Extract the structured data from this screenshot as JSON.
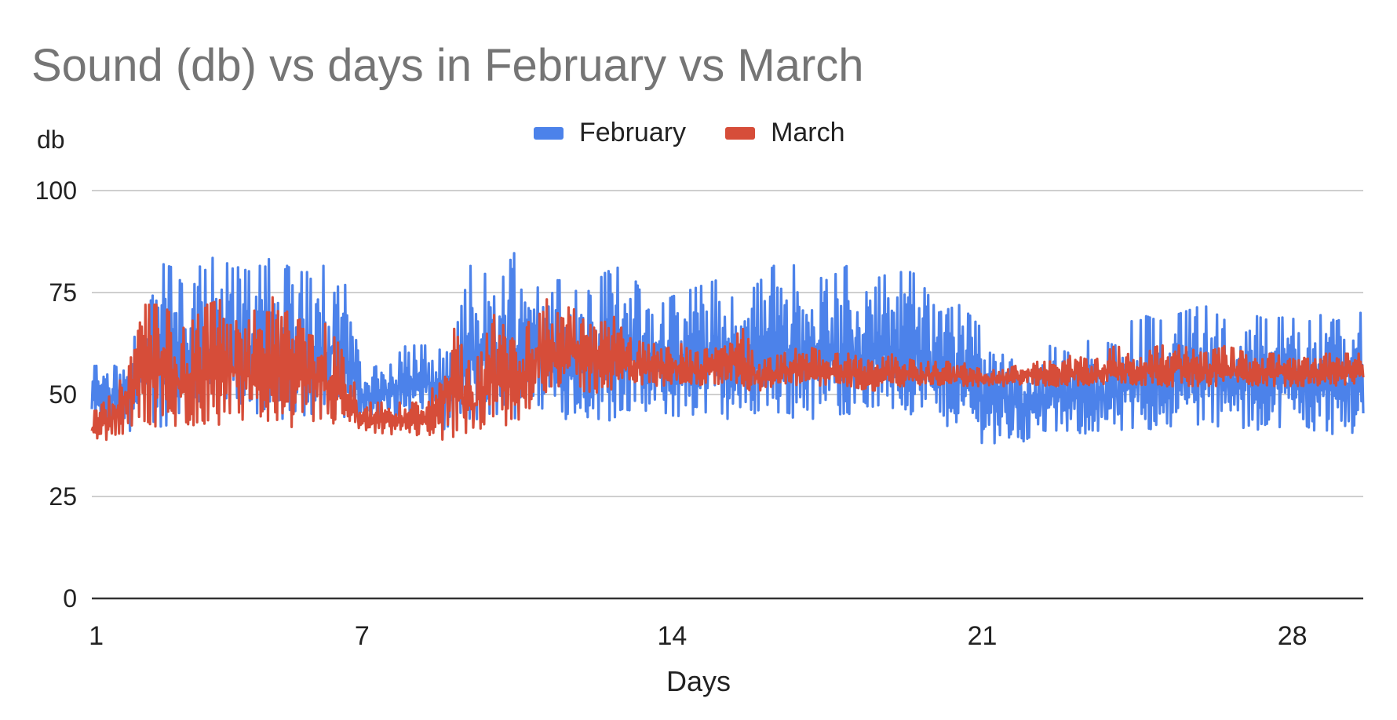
{
  "chart_data": {
    "type": "line",
    "title": "Sound (db) vs days in February vs March",
    "ylabel": "db",
    "xlabel": "Days",
    "ylim": [
      0,
      100
    ],
    "yticks": [
      "0",
      "25",
      "50",
      "75",
      "100"
    ],
    "xlim": [
      1,
      29.6
    ],
    "xticks": [
      1,
      7,
      14,
      21,
      28
    ],
    "legend_position": "top-center",
    "grid": true,
    "series": [
      {
        "name": "February",
        "color": "#4c82ea",
        "x": [
          1,
          1.5,
          2,
          2.5,
          3,
          3.5,
          4,
          4.5,
          5,
          5.5,
          6,
          6.5,
          7,
          7.5,
          8,
          8.5,
          9,
          9.5,
          10,
          10.5,
          11,
          11.5,
          12,
          12.5,
          13,
          13.5,
          14,
          14.5,
          15,
          15.5,
          16,
          16.5,
          17,
          17.5,
          18,
          18.5,
          19,
          19.5,
          20,
          20.5,
          21,
          21.5,
          22,
          22.5,
          23,
          23.5,
          24,
          24.5,
          25,
          25.5,
          26,
          26.5,
          27,
          27.5,
          28,
          28.5,
          29,
          29.5
        ],
        "low": [
          42,
          40,
          42,
          42,
          44,
          44,
          44,
          45,
          44,
          44,
          44,
          44,
          44,
          44,
          45,
          45,
          40,
          42,
          44,
          44,
          46,
          44,
          44,
          43,
          45,
          44,
          44,
          44,
          44,
          44,
          45,
          44,
          44,
          44,
          45,
          45,
          45,
          44,
          42,
          42,
          38,
          38,
          38,
          40,
          40,
          40,
          40,
          40,
          42,
          42,
          42,
          42,
          40,
          42,
          42,
          40,
          40,
          40
        ],
        "high": [
          57,
          60,
          68,
          82,
          80,
          84,
          82,
          80,
          84,
          80,
          80,
          86,
          55,
          58,
          62,
          62,
          60,
          84,
          76,
          86,
          78,
          78,
          74,
          80,
          82,
          70,
          74,
          76,
          78,
          72,
          78,
          84,
          80,
          78,
          82,
          78,
          80,
          80,
          70,
          72,
          66,
          64,
          58,
          62,
          60,
          64,
          62,
          70,
          68,
          70,
          72,
          68,
          70,
          68,
          70,
          70,
          68,
          70
        ]
      },
      {
        "name": "March",
        "color": "#d64d39",
        "x": [
          1,
          1.5,
          2,
          2.5,
          3,
          3.5,
          4,
          4.5,
          5,
          5.5,
          6,
          6.5,
          7,
          7.5,
          8,
          8.5,
          9,
          9.5,
          10,
          10.5,
          11,
          11.5,
          12,
          12.5,
          13,
          13.5,
          14,
          14.5,
          15,
          15.5,
          16,
          16.5,
          17,
          17.5,
          18,
          18.5,
          19,
          19.5,
          20,
          20.5,
          21,
          21.5,
          22,
          22.5,
          23,
          23.5,
          24,
          24.5,
          25,
          25.5,
          26,
          26.5,
          27,
          27.5,
          28,
          28.5,
          29,
          29.5
        ],
        "low": [
          38,
          40,
          42,
          42,
          42,
          42,
          42,
          42,
          42,
          42,
          42,
          42,
          40,
          40,
          40,
          40,
          38,
          40,
          42,
          42,
          50,
          52,
          50,
          50,
          52,
          52,
          52,
          52,
          52,
          52,
          50,
          52,
          52,
          52,
          52,
          50,
          52,
          52,
          52,
          52,
          52,
          52,
          52,
          52,
          52,
          52,
          52,
          52,
          52,
          52,
          52,
          52,
          52,
          52,
          52,
          52,
          52,
          52
        ],
        "high": [
          46,
          52,
          72,
          72,
          66,
          72,
          74,
          70,
          74,
          68,
          70,
          62,
          48,
          48,
          48,
          48,
          68,
          56,
          70,
          62,
          74,
          72,
          70,
          72,
          64,
          62,
          64,
          60,
          62,
          68,
          58,
          60,
          62,
          60,
          60,
          58,
          60,
          58,
          58,
          58,
          56,
          56,
          58,
          58,
          60,
          58,
          62,
          60,
          62,
          62,
          60,
          62,
          60,
          60,
          60,
          60,
          60,
          60
        ]
      }
    ]
  }
}
